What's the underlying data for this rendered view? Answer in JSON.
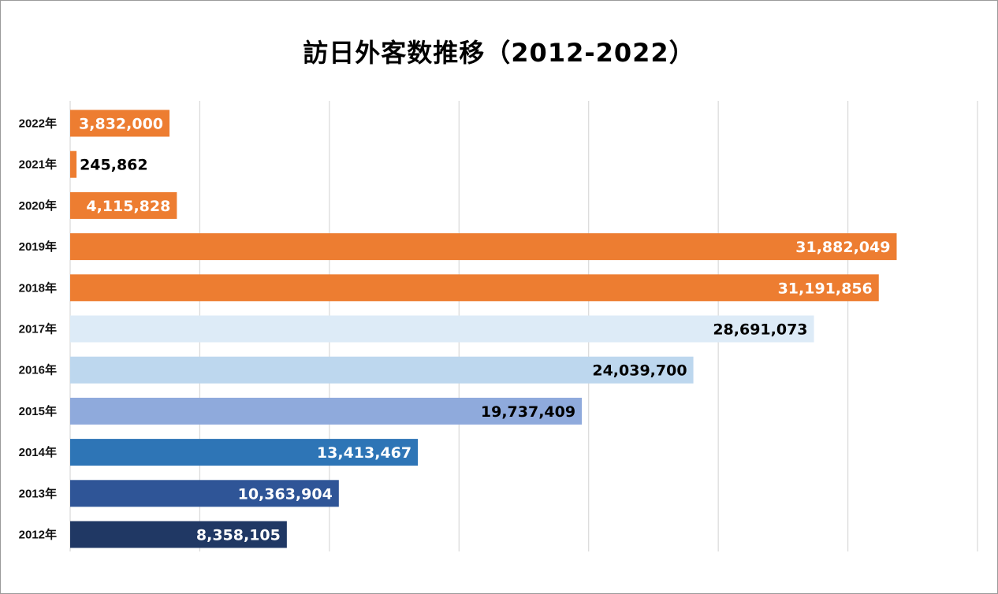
{
  "chart_data": {
    "type": "bar",
    "orientation": "horizontal",
    "title": "訪日外客数推移（2012-2022）",
    "xlabel": "",
    "ylabel": "",
    "xlim": [
      0,
      35000000
    ],
    "grid": "vertical",
    "legend": "none",
    "categories": [
      "2022年",
      "2021年",
      "2020年",
      "2019年",
      "2018年",
      "2017年",
      "2016年",
      "2015年",
      "2014年",
      "2013年",
      "2012年"
    ],
    "values": [
      3832000,
      245862,
      4115828,
      31882049,
      31191856,
      28691073,
      24039700,
      19737409,
      13413467,
      10363904,
      8358105
    ],
    "data_labels": [
      "3,832,000",
      "245,862",
      "4,115,828",
      "31,882,049",
      "31,191,856",
      "28,691,073",
      "24,039,700",
      "19,737,409",
      "13,413,467",
      "10,363,904",
      "8,358,105"
    ],
    "bar_colors": [
      "#ED7D31",
      "#ED7D31",
      "#ED7D31",
      "#ED7D31",
      "#ED7D31",
      "#DDEBF7",
      "#BDD7EE",
      "#8FAADC",
      "#2E75B6",
      "#2F5597",
      "#203864"
    ],
    "label_colors": [
      "#ffffff",
      "#000000",
      "#ffffff",
      "#ffffff",
      "#ffffff",
      "#000000",
      "#000000",
      "#000000",
      "#ffffff",
      "#ffffff",
      "#ffffff"
    ]
  }
}
